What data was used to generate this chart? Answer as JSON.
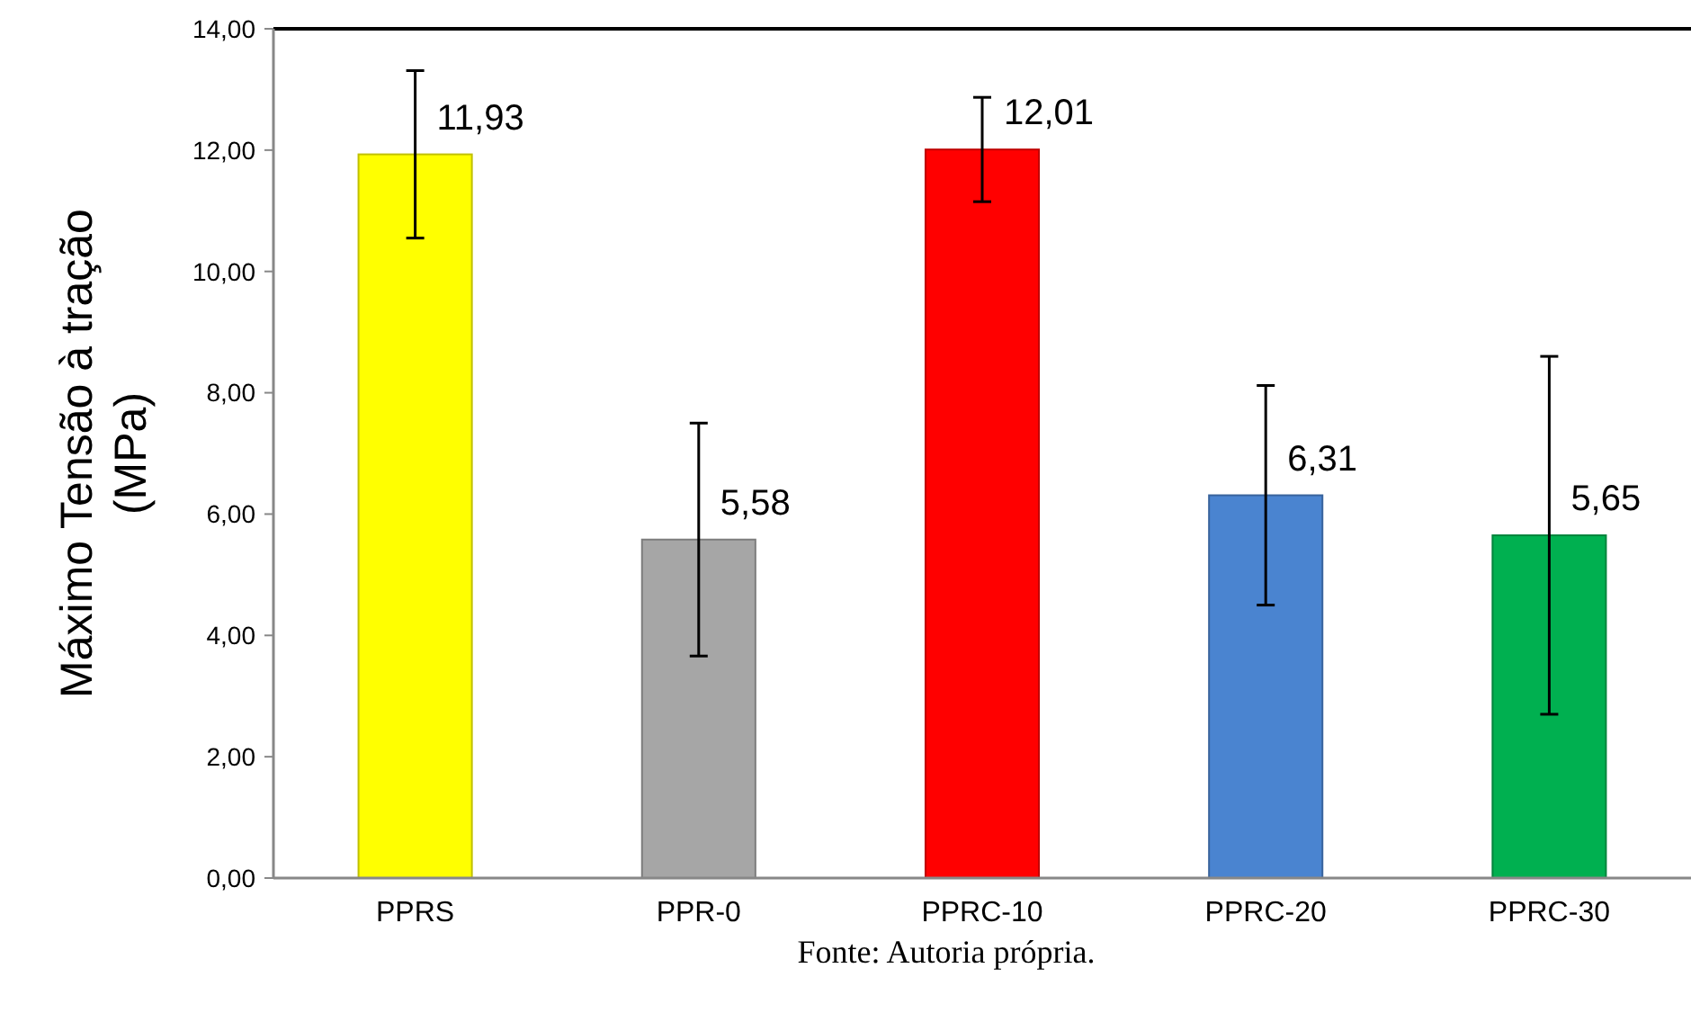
{
  "chart_data": {
    "type": "bar",
    "ylabel": "Máximo Tensão à tração\n(MPa)",
    "categories": [
      "PPRS",
      "PPR-0",
      "PPRC-10",
      "PPRC-20",
      "PPRC-30"
    ],
    "values": [
      11.93,
      5.58,
      12.01,
      6.31,
      5.65
    ],
    "colors": [
      "#ffff00",
      "#a6a6a6",
      "#ff0000",
      "#4a84d0",
      "#00b050"
    ],
    "errors": [
      1.38,
      1.92,
      0.86,
      1.81,
      2.95
    ],
    "value_labels": [
      "11,93",
      "5,58",
      "12,01",
      "6,31",
      "5,65"
    ],
    "ylim": [
      0,
      14
    ],
    "yticks": [
      {
        "value": 0,
        "label": "0,00"
      },
      {
        "value": 2,
        "label": "2,00"
      },
      {
        "value": 4,
        "label": "4,00"
      },
      {
        "value": 6,
        "label": "6,00"
      },
      {
        "value": 8,
        "label": "8,00"
      },
      {
        "value": 10,
        "label": "10,00"
      },
      {
        "value": 12,
        "label": "12,00"
      },
      {
        "value": 14,
        "label": "14,00"
      }
    ],
    "grid": false,
    "annotations": [
      "Fonte: Autoria própria."
    ]
  }
}
